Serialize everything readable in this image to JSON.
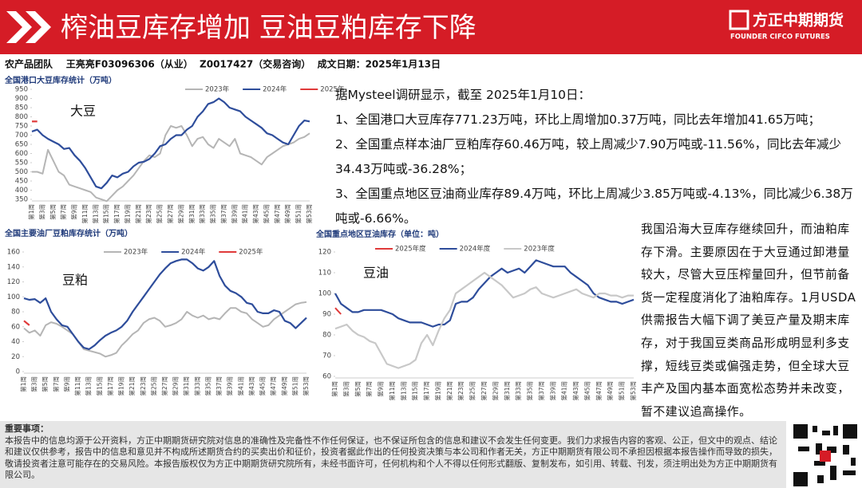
{
  "header": {
    "title": "榨油豆库存增加  豆油豆粕库存下降",
    "logo_cn": "方正中期期货",
    "logo_en": "FOUNDER CIFCO FUTURES",
    "byline": "农产品团队    王亮亮F03096306（从业）  Z0017427（交易咨询）  成文日期：2025年1月13日"
  },
  "summary": {
    "intro": "据Mysteel调研显示，截至 2025年1月10日：",
    "points": [
      "1、全国港口大豆库存771.23万吨，环比上周增加0.37万吨，同比去年增加41.65万吨；",
      "2、全国重点样本油厂豆粕库存60.46万吨，较上周减少7.90万吨或-11.56%，同比去年减少34.43万吨或-36.28%；",
      "3、全国重点地区豆油商业库存89.4万吨，环比上周减少3.85万吨或-4.13%，同比减少6.38万吨或-6.66%。"
    ]
  },
  "analysis": "我国沿海大豆库存继续回升，而油粕库存下滑。主要原因在于大豆通过卸港量较大，尽管大豆压榨量回升，但节前备货一定程度消化了油粕库存。1月USDA供需报告大幅下调了美豆产量及期末库存，对于我国豆类商品形成明显利多支撑，短线豆类或偏强走势，但全球大豆丰产及国内基本面宽松态势并未改变，暂不建议追高操作。",
  "disclaimer": {
    "title": "重要事项：",
    "body": "本报告中的信息均源于公开资料，方正中期期货研究院对信息的准确性及完备性不作任何保证，也不保证所包含的信息和建议不会发生任何变更。我们力求报告内容的客观、公正，但文中的观点、结论和建议仅供参考，报告中的信息和意见并不构成所述期货合约的买卖出价和征价，投资者据此作出的任何投资决策与本公司和作者无关，方正中期期货有限公司不承担因根据本报告操作而导致的损失，敬请投资者注意可能存在的交易风险。本报告版权仅为方正中期期货研究院所有，未经书面许可，任何机构和个人不得以任何形式翻版、复制发布，如引用、转载、刊发，须注明出处为方正中期期货有限公司。"
  },
  "chart_data": [
    {
      "type": "line",
      "title": "全国港口大豆库存统计（万吨）",
      "annotation": "大豆",
      "grid": false,
      "categories": [
        "第1周",
        null,
        "第3周",
        null,
        "第5周",
        null,
        "第7周",
        null,
        "第9周",
        null,
        "第11周",
        null,
        "第13周",
        null,
        "第15周",
        null,
        "第17周",
        null,
        "第19周",
        null,
        "第21周",
        null,
        "第23周",
        null,
        "第25周",
        null,
        "第27周",
        null,
        "第29周",
        null,
        "第31周",
        null,
        "第33周",
        null,
        "第35周",
        null,
        "第37周",
        null,
        "第39周",
        null,
        "第41周",
        null,
        "第43周",
        null,
        "第45周",
        null,
        "第47周",
        null,
        "第49周",
        null,
        "第51周",
        null,
        "第53周"
      ],
      "ylim": [
        350,
        950
      ],
      "yticks": [
        350,
        400,
        450,
        500,
        550,
        600,
        650,
        700,
        750,
        800,
        850,
        900,
        950
      ],
      "series": [
        {
          "name": "2023年",
          "color": "#b5b5b5",
          "values": [
            500,
            500,
            490,
            620,
            560,
            500,
            480,
            430,
            420,
            410,
            400,
            390,
            360,
            350,
            340,
            370,
            400,
            420,
            450,
            480,
            520,
            560,
            590,
            580,
            600,
            700,
            750,
            740,
            750,
            700,
            640,
            680,
            690,
            650,
            630,
            680,
            660,
            640,
            680,
            600,
            590,
            580,
            560,
            540,
            580,
            600,
            620,
            640,
            650,
            660,
            680,
            690,
            710
          ]
        },
        {
          "name": "2024年",
          "color": "#2e4d9b",
          "values": [
            720,
            730,
            700,
            680,
            665,
            650,
            625,
            630,
            590,
            560,
            520,
            470,
            420,
            410,
            440,
            480,
            470,
            490,
            500,
            530,
            550,
            555,
            570,
            600,
            640,
            650,
            680,
            700,
            700,
            730,
            750,
            800,
            830,
            870,
            880,
            900,
            880,
            850,
            840,
            830,
            800,
            780,
            760,
            740,
            710,
            700,
            680,
            660,
            650,
            700,
            750,
            780,
            775
          ]
        },
        {
          "name": "2025年",
          "color": "#e03a3a",
          "values": [
            775,
            775,
            null,
            null,
            null,
            null,
            null,
            null,
            null,
            null,
            null,
            null,
            null,
            null,
            null,
            null,
            null,
            null,
            null,
            null,
            null,
            null,
            null,
            null,
            null,
            null,
            null,
            null,
            null,
            null,
            null,
            null,
            null,
            null,
            null,
            null,
            null,
            null,
            null,
            null,
            null,
            null,
            null,
            null,
            null,
            null,
            null,
            null,
            null,
            null,
            null,
            null,
            null
          ]
        }
      ]
    },
    {
      "type": "line",
      "title": "全国主要油厂豆粕库存统计（万吨）",
      "annotation": "豆粕",
      "grid": false,
      "categories": [
        "第1周",
        null,
        "第3周",
        null,
        "第5周",
        null,
        "第7周",
        null,
        "第9周",
        null,
        "第11周",
        null,
        "第13周",
        null,
        "第15周",
        null,
        "第17周",
        null,
        "第19周",
        null,
        "第21周",
        null,
        "第23周",
        null,
        "第25周",
        null,
        "第27周",
        null,
        "第29周",
        null,
        "第31周",
        null,
        "第33周",
        null,
        "第35周",
        null,
        "第37周",
        null,
        "第39周",
        null,
        "第41周",
        null,
        "第43周",
        null,
        "第45周",
        null,
        "第47周",
        null,
        "第49周",
        null,
        "第51周",
        null,
        "第53周"
      ],
      "ylim": [
        0,
        160
      ],
      "yticks": [
        0,
        20,
        40,
        60,
        80,
        100,
        120,
        140,
        160
      ],
      "series": [
        {
          "name": "2023年",
          "color": "#b5b5b5",
          "values": [
            58,
            52,
            55,
            48,
            62,
            66,
            64,
            60,
            55,
            50,
            40,
            30,
            28,
            26,
            24,
            20,
            22,
            25,
            35,
            42,
            50,
            55,
            65,
            70,
            72,
            68,
            60,
            62,
            65,
            70,
            80,
            75,
            72,
            75,
            70,
            72,
            70,
            78,
            85,
            85,
            80,
            78,
            70,
            65,
            60,
            62,
            70,
            75,
            80,
            85,
            90,
            92,
            93
          ]
        },
        {
          "name": "2024年",
          "color": "#2e4d9b",
          "values": [
            98,
            96,
            97,
            92,
            98,
            80,
            70,
            62,
            60,
            50,
            40,
            32,
            30,
            35,
            42,
            48,
            52,
            55,
            60,
            68,
            80,
            90,
            100,
            110,
            120,
            130,
            138,
            145,
            148,
            150,
            150,
            145,
            138,
            135,
            140,
            148,
            128,
            115,
            108,
            105,
            100,
            92,
            90,
            80,
            78,
            78,
            82,
            80,
            68,
            65,
            58,
            65,
            72
          ]
        },
        {
          "name": "2025年",
          "color": "#e03a3a",
          "values": [
            68,
            62,
            null,
            null,
            null,
            null,
            null,
            null,
            null,
            null,
            null,
            null,
            null,
            null,
            null,
            null,
            null,
            null,
            null,
            null,
            null,
            null,
            null,
            null,
            null,
            null,
            null,
            null,
            null,
            null,
            null,
            null,
            null,
            null,
            null,
            null,
            null,
            null,
            null,
            null,
            null,
            null,
            null,
            null,
            null,
            null,
            null,
            null,
            null,
            null,
            null,
            null,
            null
          ]
        }
      ]
    },
    {
      "type": "line",
      "title": "全国重点地区豆油库存（单位：吨）",
      "annotation": "豆油",
      "grid": false,
      "categories": [
        "第1周",
        null,
        "第3周",
        null,
        "第5周",
        null,
        "第7周",
        null,
        "第9周",
        null,
        "第11周",
        null,
        "第13周",
        null,
        "第15周",
        null,
        "第17周",
        null,
        "第19周",
        null,
        "第21周",
        null,
        "第23周",
        null,
        "第25周",
        null,
        "第27周",
        null,
        "第29周",
        null,
        "第31周",
        null,
        "第33周",
        null,
        "第35周",
        null,
        "第37周",
        null,
        "第39周",
        null,
        "第41周",
        null,
        "第43周",
        null,
        "第45周",
        null,
        "第47周",
        null,
        "第49周",
        null,
        "第51周",
        null,
        "第53周"
      ],
      "ylim": [
        60,
        120
      ],
      "yticks": [
        60,
        70,
        80,
        90,
        100,
        110,
        120
      ],
      "series": [
        {
          "name": "2025年度",
          "color": "#e03a3a",
          "values": [
            93,
            90,
            null,
            null,
            null,
            null,
            null,
            null,
            null,
            null,
            null,
            null,
            null,
            null,
            null,
            null,
            null,
            null,
            null,
            null,
            null,
            null,
            null,
            null,
            null,
            null,
            null,
            null,
            null,
            null,
            null,
            null,
            null,
            null,
            null,
            null,
            null,
            null,
            null,
            null,
            null,
            null,
            null,
            null,
            null,
            null,
            null,
            null,
            null,
            null,
            null,
            null,
            null
          ]
        },
        {
          "name": "2024年度",
          "color": "#2e4d9b",
          "values": [
            100,
            95,
            93,
            91,
            91,
            92,
            92,
            92,
            92,
            91,
            90,
            88,
            87,
            86,
            86,
            86,
            85,
            84,
            85,
            85,
            87,
            95,
            96,
            96,
            98,
            102,
            105,
            108,
            110,
            112,
            110,
            111,
            112,
            110,
            113,
            116,
            115,
            114,
            113,
            113,
            113,
            110,
            108,
            106,
            104,
            100,
            98,
            97,
            96,
            96,
            95,
            96,
            97
          ]
        },
        {
          "name": "2023年度",
          "color": "#c8c8c8",
          "values": [
            83,
            84,
            85,
            82,
            80,
            79,
            77,
            76,
            71,
            66,
            65,
            64,
            65,
            66,
            68,
            76,
            80,
            75,
            82,
            88,
            92,
            100,
            102,
            104,
            106,
            108,
            110,
            108,
            106,
            104,
            101,
            98,
            99,
            100,
            102,
            103,
            100,
            99,
            98,
            99,
            100,
            101,
            102,
            100,
            99,
            98,
            100,
            100,
            99,
            99,
            98,
            99,
            99
          ]
        }
      ]
    }
  ]
}
